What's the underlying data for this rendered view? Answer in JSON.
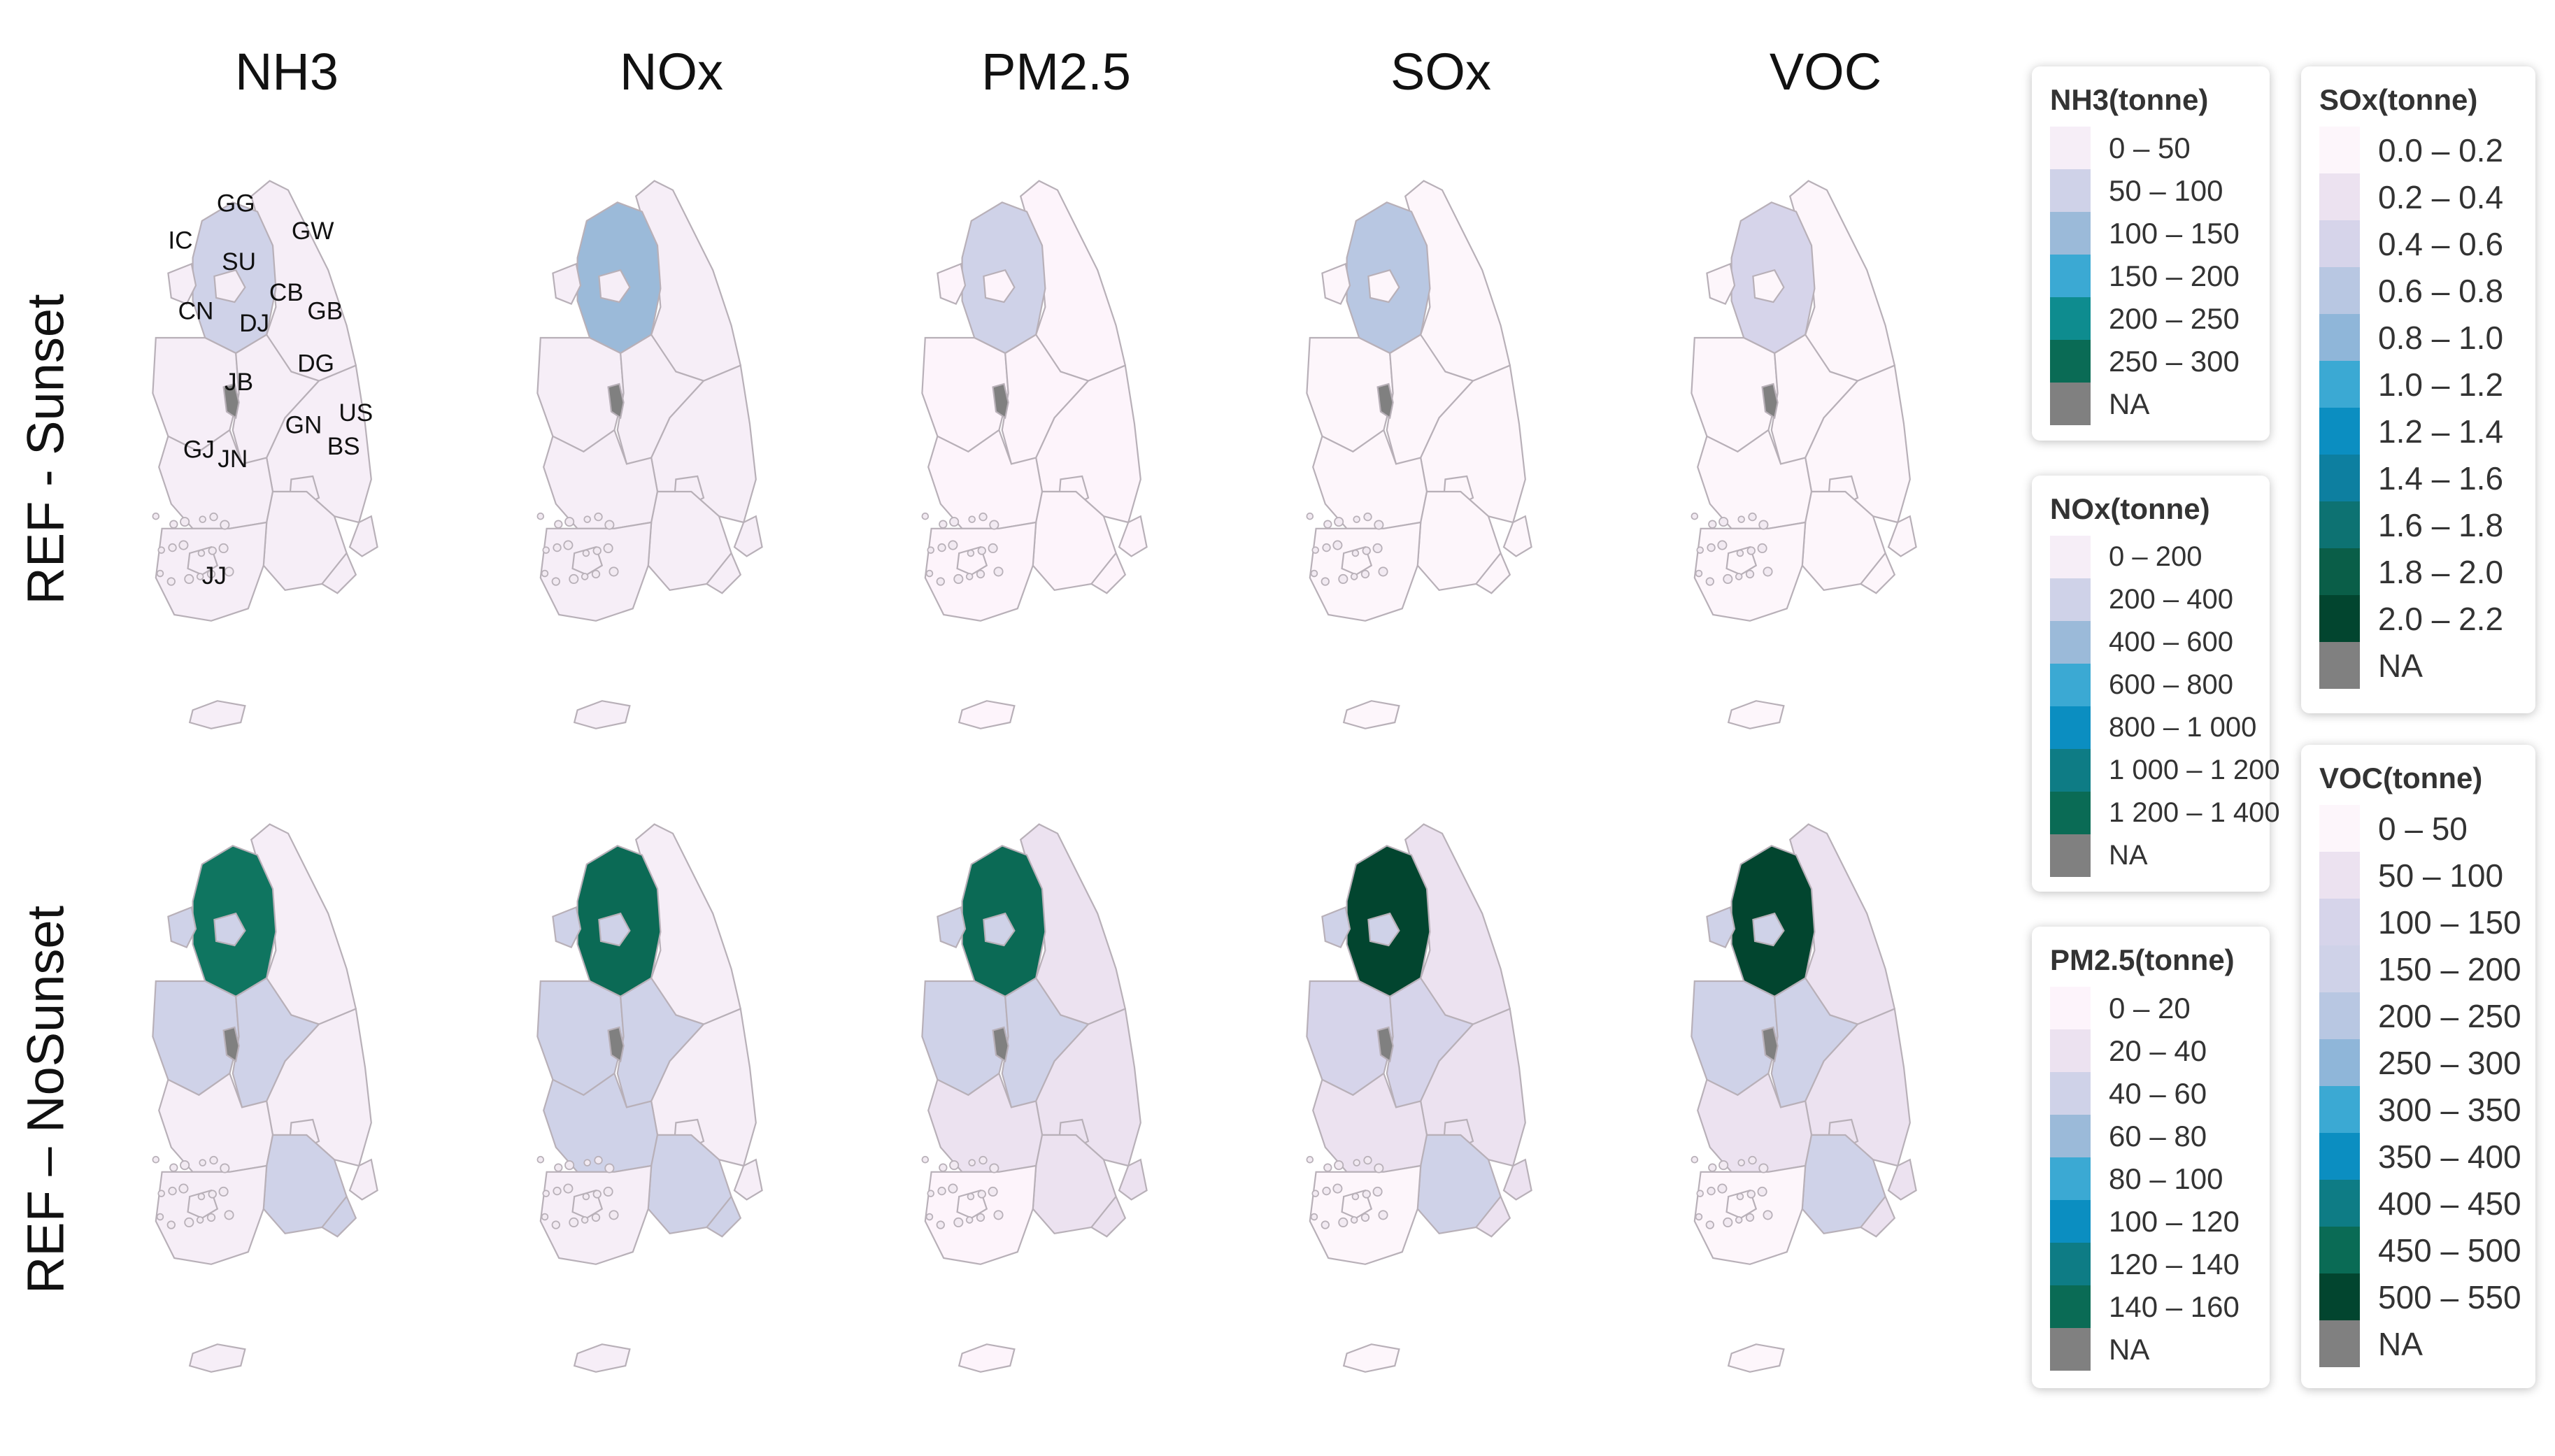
{
  "columns": [
    "NH3",
    "NOx",
    "PM2.5",
    "SOx",
    "VOC"
  ],
  "rows": [
    "REF - Sunset",
    "REF –  NoSunset"
  ],
  "region_labels": [
    "GG",
    "GW",
    "IC",
    "SU",
    "CB",
    "CN",
    "DJ",
    "GB",
    "DG",
    "JB",
    "US",
    "GN",
    "BS",
    "GJ",
    "JN",
    "JJ"
  ],
  "na_color": "#808080",
  "maps": {
    "sunset": {
      "NH3": {
        "GG": "#cfd2e8",
        "other": "#f6eef7",
        "DJ": "#808080"
      },
      "NOx": {
        "GG": "#9bbad9",
        "other": "#f6eef7",
        "DJ": "#808080"
      },
      "PM2.5": {
        "GG": "#cfd2e8",
        "other": "#fdf4fb",
        "DJ": "#808080"
      },
      "SOx": {
        "GG": "#b8c7e2",
        "other": "#fdf6fb",
        "DJ": "#808080"
      },
      "VOC": {
        "GG": "#d6d4ea",
        "other": "#fdf6fb",
        "DJ": "#808080"
      }
    },
    "nosunset": {
      "NH3": {
        "GG": "#0f7560",
        "IC": "#cfd2e8",
        "SU": "#cfd2e8",
        "CB": "#cfd2e8",
        "CN": "#cfd2e8",
        "GN": "#cfd2e8",
        "GW": "#f6eef7",
        "GB": "#f6eef7",
        "JB": "#f6eef7",
        "JN": "#f6eef7",
        "GJ": "#f6eef7",
        "DG": "#f6eef7",
        "US": "#f6eef7",
        "BS": "#cfd2e8",
        "JJ": "#f6eef7",
        "DJ": "#808080"
      },
      "NOx": {
        "GG": "#0b6a55",
        "IC": "#cfd2e8",
        "SU": "#cfd2e8",
        "CB": "#cfd2e8",
        "CN": "#cfd2e8",
        "GN": "#cfd2e8",
        "GW": "#f6eef7",
        "GB": "#f6eef7",
        "JB": "#cfd2e8",
        "JN": "#f6eef7",
        "GJ": "#f6eef7",
        "DG": "#f6eef7",
        "US": "#f6eef7",
        "BS": "#cfd2e8",
        "JJ": "#f6eef7",
        "DJ": "#808080"
      },
      "PM2.5": {
        "GG": "#0b6a55",
        "IC": "#cfd2e8",
        "SU": "#cfd2e8",
        "CB": "#cfd2e8",
        "CN": "#cfd2e8",
        "GN": "#ece2f0",
        "GW": "#ece2f0",
        "GB": "#ece2f0",
        "JB": "#ece2f0",
        "JN": "#fdf4fb",
        "GJ": "#fdf4fb",
        "DG": "#ece2f0",
        "US": "#ece2f0",
        "BS": "#ece2f0",
        "JJ": "#fdf4fb",
        "DJ": "#808080"
      },
      "SOx": {
        "GG": "#02452f",
        "IC": "#cfd2e8",
        "SU": "#cfd2e8",
        "CB": "#d6d4ea",
        "CN": "#d6d4ea",
        "GN": "#cfd2e8",
        "GW": "#ece2f0",
        "GB": "#ece2f0",
        "JB": "#ece2f0",
        "JN": "#fdf6fb",
        "GJ": "#fdf6fb",
        "DG": "#ece2f0",
        "US": "#ece2f0",
        "BS": "#ece2f0",
        "JJ": "#fdf6fb",
        "DJ": "#808080"
      },
      "VOC": {
        "GG": "#02452f",
        "IC": "#cfd2e8",
        "SU": "#cfd2e8",
        "CB": "#cfd2e8",
        "CN": "#cfd2e8",
        "GN": "#cfd2e8",
        "GW": "#ece2f0",
        "GB": "#ece2f0",
        "JB": "#ece2f0",
        "JN": "#fdf6fb",
        "GJ": "#fdf6fb",
        "DG": "#ece2f0",
        "US": "#ece2f0",
        "BS": "#ece2f0",
        "JJ": "#fdf6fb",
        "DJ": "#808080"
      }
    }
  },
  "legends": {
    "nh3": {
      "title": "NH3(tonne)",
      "items": [
        {
          "label": "0 – 50",
          "color": "#f6eef7"
        },
        {
          "label": "50 – 100",
          "color": "#cfd2e8"
        },
        {
          "label": "100 – 150",
          "color": "#9bbad9"
        },
        {
          "label": "150 – 200",
          "color": "#3ba9d3"
        },
        {
          "label": "200 – 250",
          "color": "#0e8c8f"
        },
        {
          "label": "250 – 300",
          "color": "#0a6b55"
        },
        {
          "label": "NA",
          "color": "#808080"
        }
      ]
    },
    "nox": {
      "title": "NOx(tonne)",
      "items": [
        {
          "label": "0 – 200",
          "color": "#f6eef7"
        },
        {
          "label": "200 – 400",
          "color": "#cfd2e8"
        },
        {
          "label": "400 – 600",
          "color": "#9bbad9"
        },
        {
          "label": "600 – 800",
          "color": "#3ba9d3"
        },
        {
          "label": "800 – 1 000",
          "color": "#0b8ec1"
        },
        {
          "label": "1 000 – 1 200",
          "color": "#0e7c85"
        },
        {
          "label": "1 200 – 1 400",
          "color": "#0a6b55"
        },
        {
          "label": "NA",
          "color": "#808080"
        }
      ]
    },
    "pm25": {
      "title": "PM2.5(tonne)",
      "items": [
        {
          "label": "0 – 20",
          "color": "#fdf4fb"
        },
        {
          "label": "20 – 40",
          "color": "#ece2f0"
        },
        {
          "label": "40 – 60",
          "color": "#cfd2e8"
        },
        {
          "label": "60 – 80",
          "color": "#9bbad9"
        },
        {
          "label": "80 – 100",
          "color": "#3ba9d3"
        },
        {
          "label": "100 – 120",
          "color": "#0b8ec1"
        },
        {
          "label": "120 – 140",
          "color": "#0e7c85"
        },
        {
          "label": "140 – 160",
          "color": "#0a6b55"
        },
        {
          "label": "NA",
          "color": "#808080"
        }
      ]
    },
    "sox": {
      "title": "SOx(tonne)",
      "items": [
        {
          "label": "0.0 – 0.2",
          "color": "#fdf6fb"
        },
        {
          "label": "0.2 – 0.4",
          "color": "#ece2f0"
        },
        {
          "label": "0.4 – 0.6",
          "color": "#d6d4ea"
        },
        {
          "label": "0.6 – 0.8",
          "color": "#b8c7e2"
        },
        {
          "label": "0.8 – 1.0",
          "color": "#8fb6d9"
        },
        {
          "label": "1.0 – 1.2",
          "color": "#3ba9d3"
        },
        {
          "label": "1.2 – 1.4",
          "color": "#0b8ec1"
        },
        {
          "label": "1.4 – 1.6",
          "color": "#0d7fa0"
        },
        {
          "label": "1.6 – 1.8",
          "color": "#0d7272"
        },
        {
          "label": "1.8 – 2.0",
          "color": "#0a5e48"
        },
        {
          "label": "2.0 – 2.2",
          "color": "#02452f"
        },
        {
          "label": "NA",
          "color": "#808080"
        }
      ]
    },
    "voc": {
      "title": "VOC(tonne)",
      "items": [
        {
          "label": "0 – 50",
          "color": "#fdf6fb"
        },
        {
          "label": "50 – 100",
          "color": "#ece2f0"
        },
        {
          "label": "100 – 150",
          "color": "#d6d4ea"
        },
        {
          "label": "150 – 200",
          "color": "#cfd2e8"
        },
        {
          "label": "200 – 250",
          "color": "#b8c7e2"
        },
        {
          "label": "250 – 300",
          "color": "#8fb6d9"
        },
        {
          "label": "300 – 350",
          "color": "#3ba9d3"
        },
        {
          "label": "350 – 400",
          "color": "#0b8ec1"
        },
        {
          "label": "400 – 450",
          "color": "#0e7c85"
        },
        {
          "label": "450 – 500",
          "color": "#0a6b55"
        },
        {
          "label": "500 – 550",
          "color": "#02452f"
        },
        {
          "label": "NA",
          "color": "#808080"
        }
      ]
    }
  }
}
